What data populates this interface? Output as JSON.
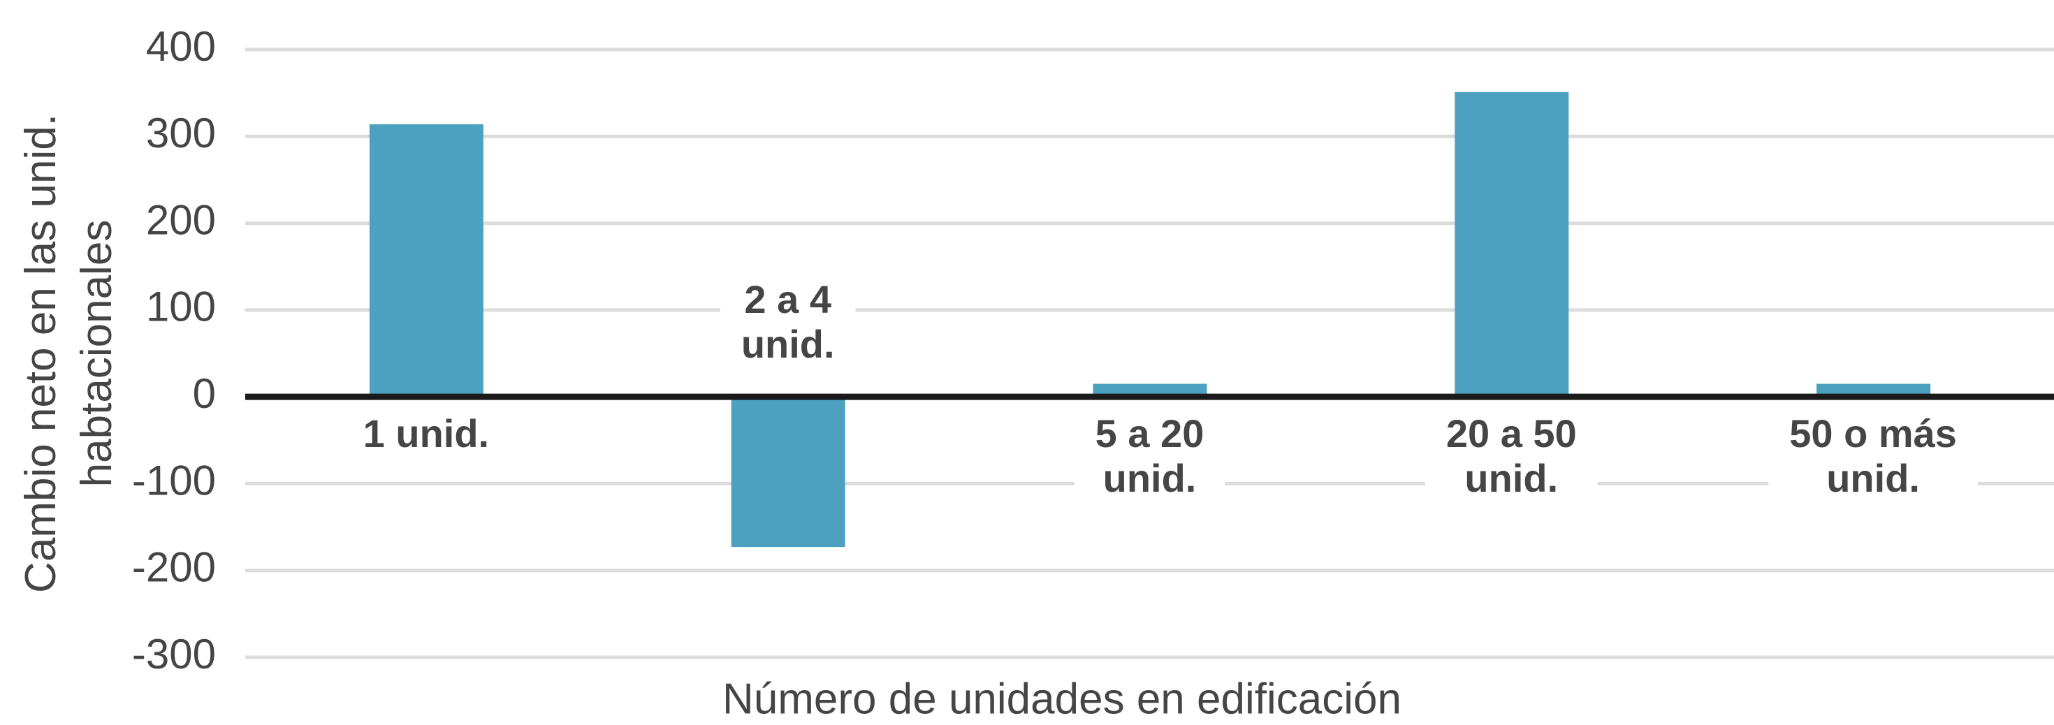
{
  "chart_data": {
    "type": "bar",
    "categories": [
      "1 unid.",
      "2 a 4 unid.",
      "5 a 20 unid.",
      "20 a 50 unid.",
      "50 o más unid."
    ],
    "values": [
      314,
      -173,
      15,
      351,
      15
    ],
    "color": "#4da1c0",
    "ylim": [
      -300,
      400
    ],
    "yticks": [
      -300,
      -200,
      -100,
      0,
      100,
      200,
      300,
      400
    ],
    "grid": true,
    "x_label": "Número de unidades en edificación",
    "y_label": "Cambio neto en las unid. habtacionales"
  }
}
